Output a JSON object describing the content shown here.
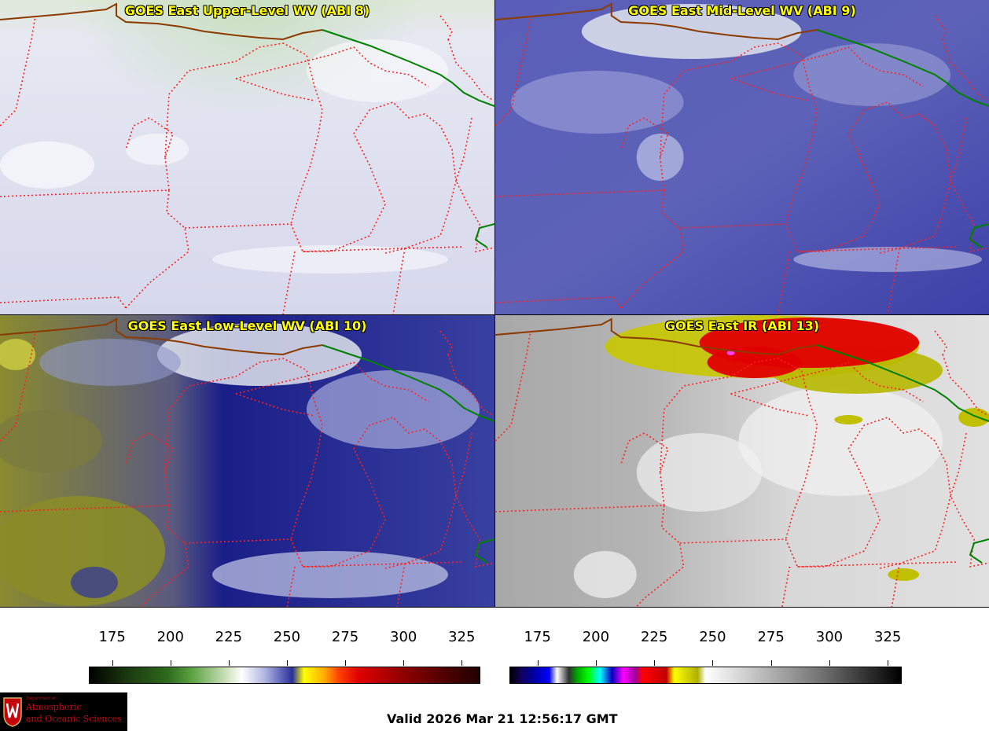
{
  "panels": [
    {
      "id": "upper",
      "title": "GOES East Upper-Level WV (ABI 8)"
    },
    {
      "id": "mid",
      "title": "GOES East Mid-Level WV (ABI 9)"
    },
    {
      "id": "low",
      "title": "GOES East Low-Level WV (ABI 10)"
    },
    {
      "id": "ir",
      "title": "GOES East IR (ABI 13)"
    }
  ],
  "colorbars": {
    "wv": {
      "ticks": [
        "175",
        "200",
        "225",
        "250",
        "275",
        "300",
        "325"
      ],
      "min": 165,
      "max": 333
    },
    "ir": {
      "ticks": [
        "175",
        "200",
        "225",
        "250",
        "275",
        "300",
        "325"
      ],
      "min": 163,
      "max": 331
    }
  },
  "footer": {
    "logo_line_small": "Department of",
    "logo_line_1": "Atmospheric",
    "logo_line_2": "and Oceanic Sciences",
    "valid_time": "Valid 2026 Mar 21 12:56:17 GMT"
  },
  "colors": {
    "state_borders": "#ff2020",
    "country_border": "#8b3a00",
    "lake_border": "#008000",
    "title_text": "#ffff00"
  }
}
